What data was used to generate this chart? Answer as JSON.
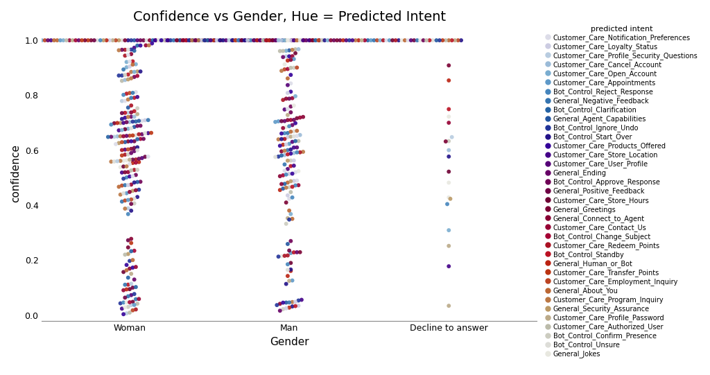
{
  "title": "Confidence vs Gender, Hue = Predicted Intent",
  "xlabel": "Gender",
  "ylabel": "confidence",
  "legend_title": "predicted intent",
  "genders": [
    "Woman",
    "Man",
    "Decline to answer"
  ],
  "gender_counts": [
    350,
    260,
    28
  ],
  "intents": [
    "Customer_Care_Notification_Preferences",
    "Customer_Care_Loyalty_Status",
    "Customer_Care_Profile_Security_Questions",
    "Customer_Care_Cancel_Account",
    "Customer_Care_Open_Account",
    "Customer_Care_Appointments",
    "Bot_Control_Reject_Response",
    "General_Negative_Feedback",
    "Bot_Control_Clarification",
    "General_Agent_Capabilities",
    "Bot_Control_Ignore_Undo",
    "Bot_Control_Start_Over",
    "Customer_Care_Products_Offered",
    "Customer_Care_Store_Location",
    "Customer_Care_User_Profile",
    "General_Ending",
    "Bot_Control_Approve_Response",
    "General_Positive_Feedback",
    "Customer_Care_Store_Hours",
    "General_Greetings",
    "General_Connect_to_Agent",
    "Customer_Care_Contact_Us",
    "Bot_Control_Change_Subject",
    "Customer_Care_Redeem_Points",
    "Bot_Control_Standby",
    "General_Human_or_Bot",
    "Customer_Care_Transfer_Points",
    "Customer_Care_Employment_Inquiry",
    "General_About_You",
    "Customer_Care_Program_Inquiry",
    "General_Security_Assurance",
    "Customer_Care_Profile_Password",
    "Customer_Care_Authorized_User",
    "Bot_Control_Confirm_Presence",
    "Bot_Control_Unsure",
    "General_Jokes"
  ],
  "intent_colors": [
    "#dcdce8",
    "#cccce2",
    "#b8cce0",
    "#9bbbd8",
    "#7aadd0",
    "#5e99c8",
    "#4585bc",
    "#3474b0",
    "#2462a4",
    "#2255a0",
    "#223399",
    "#221188",
    "#330099",
    "#440088",
    "#550077",
    "#660066",
    "#6e0055",
    "#6e0044",
    "#6e0033",
    "#7a0033",
    "#880033",
    "#960033",
    "#a40033",
    "#aa1122",
    "#bb1122",
    "#bb2211",
    "#bb3311",
    "#bb4422",
    "#bb6633",
    "#bb7744",
    "#bb9966",
    "#bbaa88",
    "#bbbbaa",
    "#ccccc0",
    "#ddddd8",
    "#e8e8e0"
  ],
  "background_color": "#ffffff",
  "title_fontsize": 14,
  "axis_label_fontsize": 11,
  "tick_fontsize": 9,
  "legend_fontsize": 7,
  "dot_size": 18,
  "ylim": [
    -0.02,
    1.05
  ],
  "seed": 42
}
